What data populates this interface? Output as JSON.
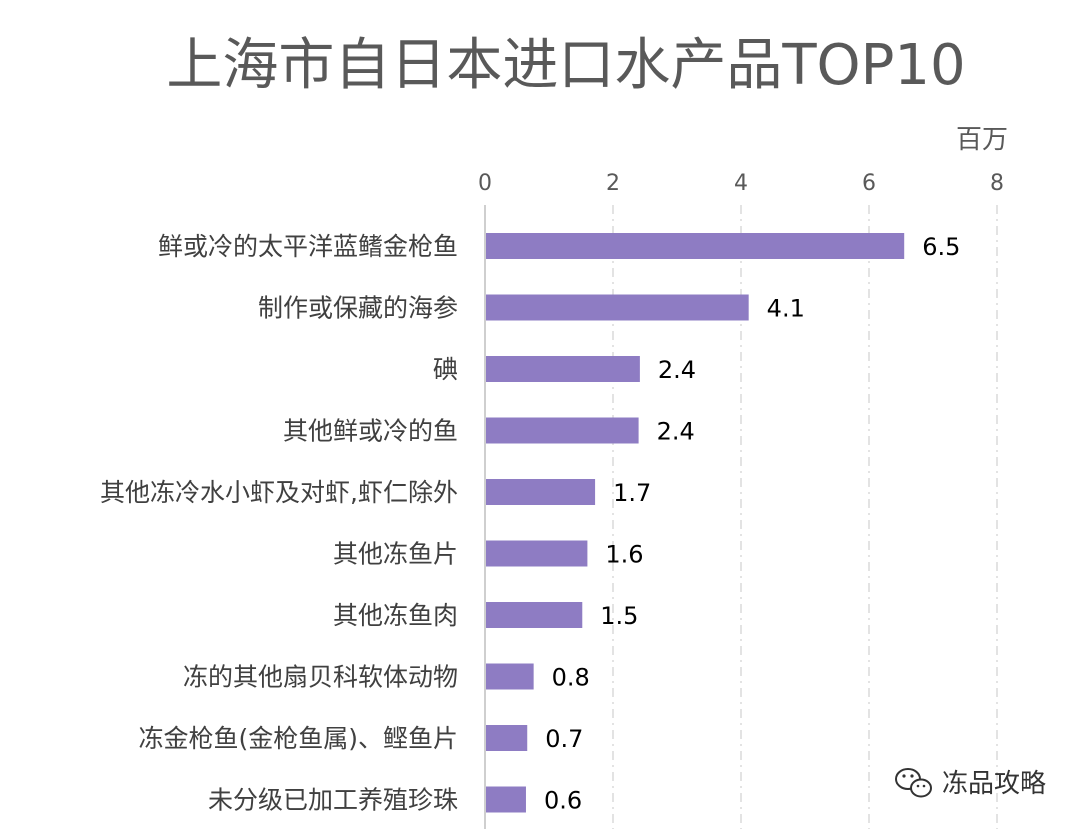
{
  "chart_data": {
    "type": "bar",
    "orientation": "horizontal",
    "title": "上海市自日本进口水产品TOP10",
    "unit_label": "百万",
    "xlim": [
      0,
      8
    ],
    "xticks": [
      "0",
      "2",
      "4",
      "6",
      "8"
    ],
    "grid": true,
    "categories": [
      "鲜或冷的太平洋蓝鳍金枪鱼",
      "制作或保藏的海参",
      "碘",
      "其他鲜或冷的鱼",
      "其他冻冷水小虾及对虾,虾仁除外",
      "其他冻鱼片",
      "其他冻鱼肉",
      "冻的其他扇贝科软体动物",
      "冻金枪鱼(金枪鱼属)、鲣鱼片",
      "未分级已加工养殖珍珠"
    ],
    "values": [
      6.55,
      4.12,
      2.42,
      2.4,
      1.72,
      1.6,
      1.52,
      0.76,
      0.66,
      0.64
    ],
    "data_labels": [
      "6.5",
      "4.1",
      "2.4",
      "2.4",
      "1.7",
      "1.6",
      "1.5",
      "0.8",
      "0.7",
      "0.6"
    ],
    "bar_color": "#8e7cc3"
  },
  "watermark": {
    "text": "冻品攻略",
    "icon": "wechat-icon"
  }
}
